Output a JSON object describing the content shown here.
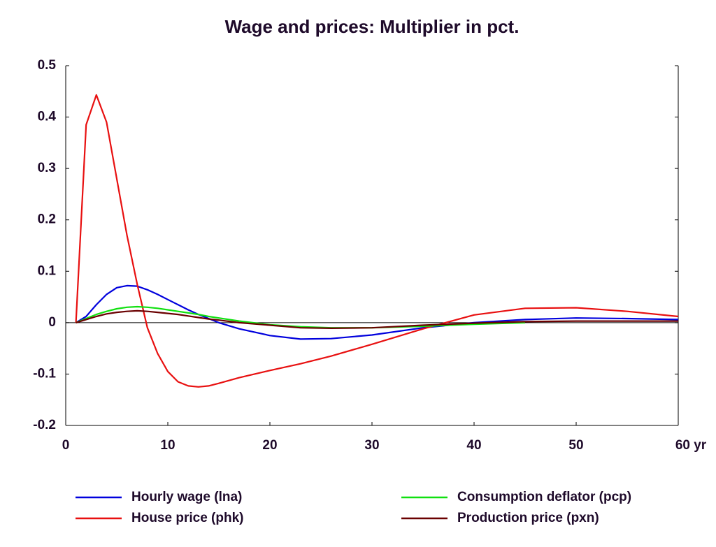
{
  "chart_data": {
    "type": "line",
    "title": "Wage and prices: Multiplier in pct.",
    "x": [
      1,
      2,
      3,
      4,
      5,
      6,
      7,
      8,
      9,
      10,
      11,
      12,
      13,
      14,
      15,
      17,
      20,
      23,
      26,
      30,
      35,
      40,
      45,
      50,
      55,
      60
    ],
    "series": [
      {
        "name": "Hourly wage (lna)",
        "color": "#0000dd",
        "values": [
          0,
          0.012,
          0.035,
          0.055,
          0.068,
          0.072,
          0.071,
          0.064,
          0.055,
          0.045,
          0.035,
          0.025,
          0.016,
          0.008,
          0.0,
          -0.012,
          -0.025,
          -0.032,
          -0.031,
          -0.024,
          -0.01,
          0.0,
          0.006,
          0.009,
          0.008,
          0.006
        ]
      },
      {
        "name": "House price (phk)",
        "color": "#e81010",
        "values": [
          0,
          0.385,
          0.443,
          0.39,
          0.28,
          0.17,
          0.075,
          -0.01,
          -0.06,
          -0.095,
          -0.115,
          -0.123,
          -0.125,
          -0.123,
          -0.118,
          -0.107,
          -0.093,
          -0.08,
          -0.065,
          -0.042,
          -0.012,
          0.015,
          0.028,
          0.029,
          0.022,
          0.012
        ]
      },
      {
        "name": "Consumption deflator (pcp)",
        "color": "#10e010",
        "values": [
          0,
          0.008,
          0.016,
          0.022,
          0.027,
          0.03,
          0.031,
          0.03,
          0.028,
          0.025,
          0.022,
          0.019,
          0.016,
          0.012,
          0.009,
          0.003,
          -0.004,
          -0.008,
          -0.01,
          -0.01,
          -0.007,
          -0.003,
          0.0,
          null,
          null,
          null
        ]
      },
      {
        "name": "Production price (pxn)",
        "color": "#6a0000",
        "values": [
          0,
          0.006,
          0.012,
          0.017,
          0.02,
          0.022,
          0.023,
          0.022,
          0.02,
          0.018,
          0.016,
          0.013,
          0.01,
          0.007,
          0.005,
          0.0,
          -0.005,
          -0.01,
          -0.011,
          -0.01,
          -0.005,
          -0.001,
          0.002,
          0.003,
          0.003,
          0.003
        ]
      }
    ],
    "xlim": [
      0,
      60
    ],
    "xticks": [
      0,
      10,
      20,
      30,
      40,
      50,
      {
        "value": 60,
        "label": "60 yr"
      }
    ],
    "ylim": [
      -0.2,
      0.5
    ],
    "yticks": [
      0.5,
      0.4,
      0.3,
      0.2,
      0.1,
      0,
      -0.1,
      -0.2
    ],
    "grid": false
  }
}
